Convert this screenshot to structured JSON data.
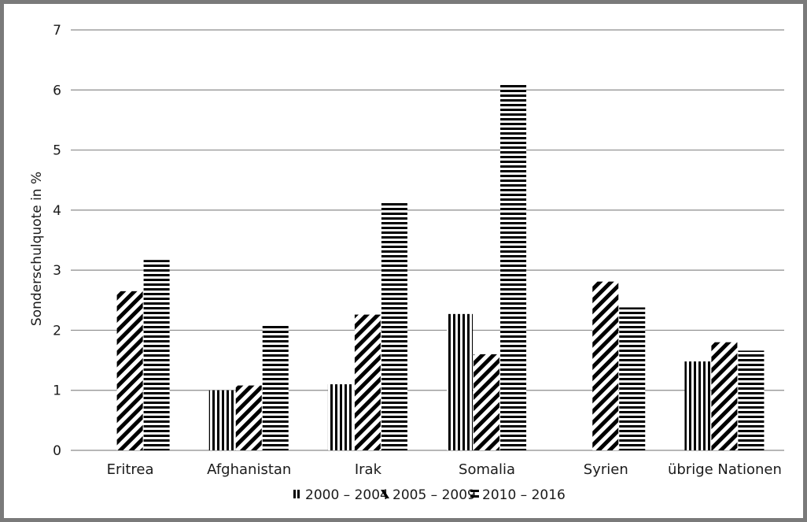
{
  "chart_data": {
    "type": "bar",
    "title": "",
    "xlabel": "",
    "ylabel": "Sonderschulquote in %",
    "ylim": [
      0,
      7
    ],
    "yticks": [
      "0",
      "1",
      "2",
      "3",
      "4",
      "5",
      "6",
      "7"
    ],
    "grid": true,
    "legend_position": "bottom",
    "categories": [
      "Eritrea",
      "Afghanistan",
      "Irak",
      "Somalia",
      "Syrien",
      "übrige Nationen"
    ],
    "series": [
      {
        "name": "2000 – 2004",
        "pattern": "vertical-stripes",
        "values": [
          null,
          1.0,
          1.1,
          2.27,
          null,
          1.48
        ]
      },
      {
        "name": "2005 – 2009",
        "pattern": "diagonal-stripes",
        "values": [
          2.65,
          1.08,
          2.26,
          1.6,
          2.81,
          1.8
        ]
      },
      {
        "name": "2010 – 2016",
        "pattern": "horizontal-stripes",
        "values": [
          3.17,
          2.1,
          4.13,
          6.12,
          2.38,
          1.66
        ]
      }
    ],
    "colors": {
      "bar": "#000000",
      "grid": "#8c8c8c",
      "frame": "#7a7a7a"
    }
  }
}
